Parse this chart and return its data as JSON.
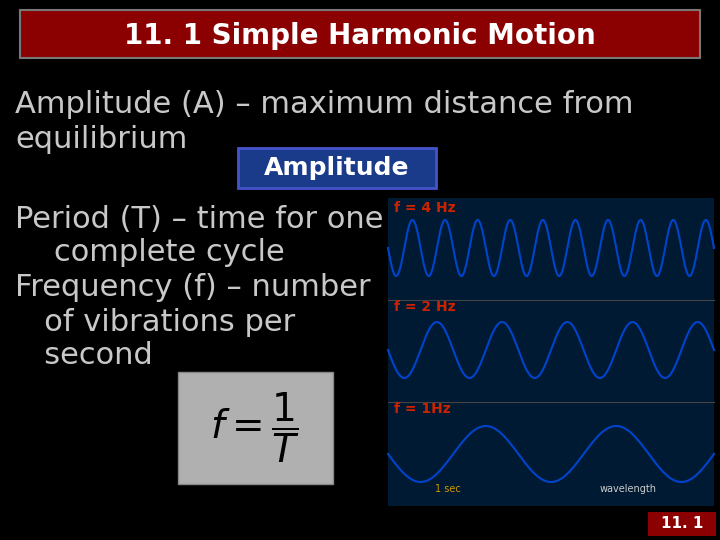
{
  "bg_color": "#000000",
  "title_text": "11. 1 Simple Harmonic Motion",
  "title_bg": "#8B0000",
  "title_text_color": "#FFFFFF",
  "title_fontsize": 20,
  "line1_text": "Amplitude (A) – maximum distance from",
  "line2_text": "equilibrium",
  "amplitude_box_text": "Amplitude",
  "amplitude_box_bg": "#1a3a8a",
  "amplitude_box_text_color": "#FFFFFF",
  "period_line1": "Period (T) – time for one",
  "period_line2": "    complete cycle",
  "freq_line1": "Frequency (f) – number",
  "freq_line2": "   of vibrations per",
  "freq_line3": "   second",
  "body_text_color": "#C8C8C8",
  "body_fontsize": 22,
  "formula_box_bg": "#B0B0B0",
  "wave_bg_color": "#001a33",
  "wave_color": "#0044cc",
  "wave_label_color": "#cc2200",
  "slide_number": "11. 1",
  "slide_number_bg": "#8B0000",
  "slide_number_color": "#FFFFFF"
}
